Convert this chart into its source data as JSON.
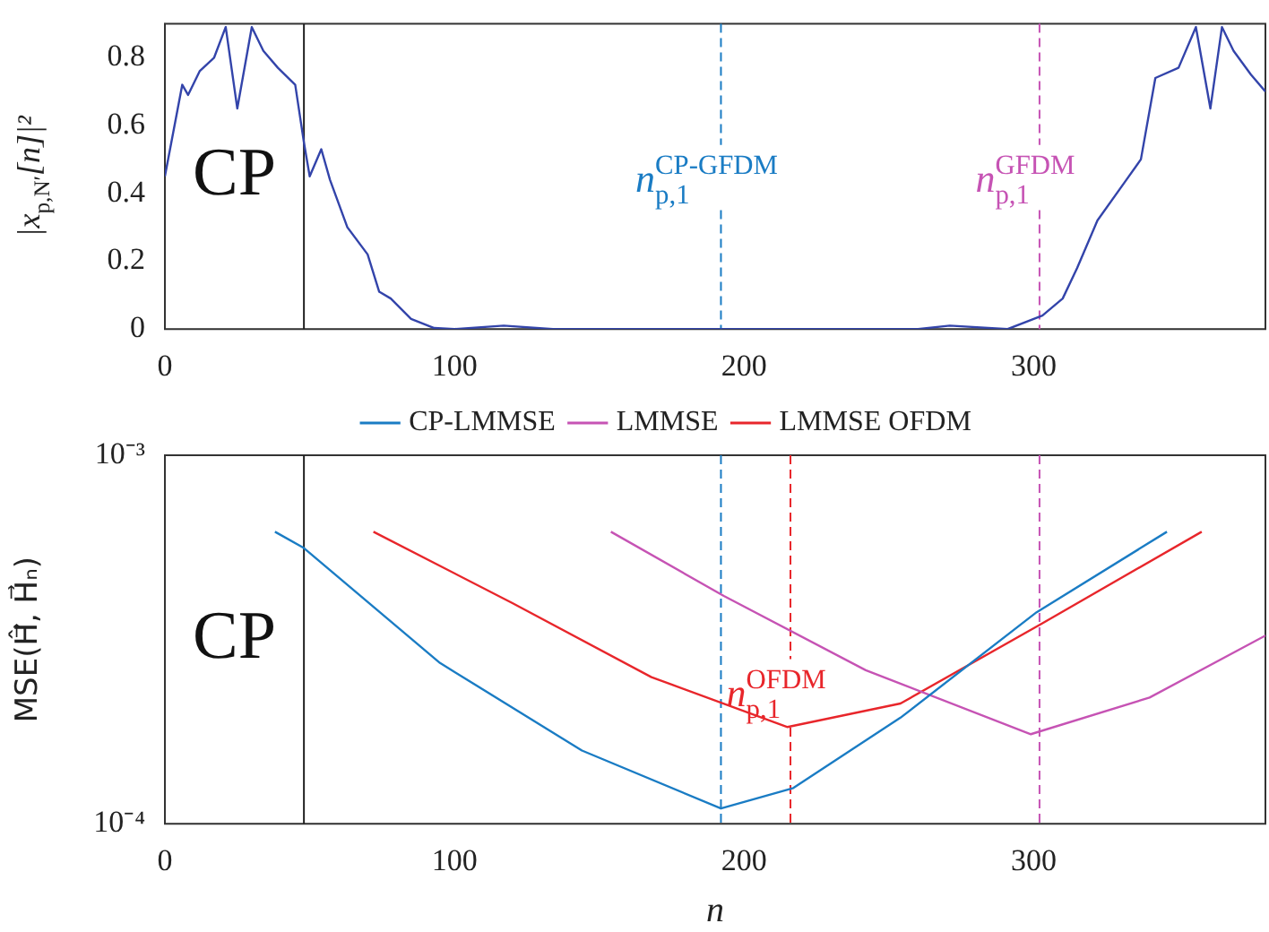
{
  "chart_data": [
    {
      "type": "line",
      "ylabel": "|x$_{p,N′}$[n]|²",
      "xlim": [
        0,
        380
      ],
      "xticks": [
        0,
        100,
        200,
        300
      ],
      "ylim": [
        0,
        0.9
      ],
      "yticks": [
        0,
        0.2,
        0.4,
        0.6,
        0.8
      ],
      "grid": false,
      "legend": false,
      "marker": "none",
      "line_style": "solid",
      "series": [
        {
          "color": "#3344aa",
          "x": [
            0,
            6,
            8,
            12,
            17,
            21,
            25,
            30,
            34,
            39,
            45,
            48,
            50,
            54,
            57,
            63,
            70,
            74,
            78,
            85,
            93,
            100,
            117,
            134,
            160,
            200,
            240,
            260,
            271,
            291,
            303,
            310,
            315,
            322,
            332,
            337,
            342,
            350,
            356,
            361,
            365,
            369,
            375,
            380
          ],
          "values": [
            0.45,
            0.72,
            0.69,
            0.76,
            0.8,
            0.89,
            0.65,
            0.89,
            0.82,
            0.77,
            0.72,
            0.55,
            0.45,
            0.53,
            0.44,
            0.3,
            0.22,
            0.11,
            0.09,
            0.03,
            0.003,
            0,
            0.01,
            0,
            0,
            0,
            0,
            0,
            0.01,
            0,
            0.04,
            0.09,
            0.18,
            0.32,
            0.44,
            0.5,
            0.74,
            0.77,
            0.89,
            0.65,
            0.89,
            0.82,
            0.75,
            0.7
          ]
        }
      ],
      "ref_lines": [
        {
          "axis": "x",
          "value": 48,
          "color": "#222222",
          "line_style": "solid"
        },
        {
          "axis": "x",
          "value": 192,
          "color": "#1a7cc4",
          "line_style": "dashed",
          "label": "n$_{p,1}$$^{CP-GFDM}$"
        },
        {
          "axis": "x",
          "value": 302,
          "color": "#c653b4",
          "line_style": "dashed",
          "label": "n$_{p,1}$$^{GFDM}$"
        }
      ],
      "annotations": [
        "CP"
      ]
    },
    {
      "type": "line",
      "xlabel": "n",
      "ylabel": "MSE(Ĥ⃗, H⃗ₙ)",
      "xlim": [
        0,
        380
      ],
      "xticks": [
        0,
        100,
        200,
        300
      ],
      "ylim": [
        0.0001,
        0.001
      ],
      "yticks": [
        {
          "value": 0.0001,
          "label": "10⁻⁴"
        },
        {
          "value": 0.001,
          "label": "10⁻³"
        }
      ],
      "log": true,
      "grid": false,
      "legend": "top",
      "marker": "none",
      "line_style": "solid",
      "series": [
        {
          "name": "CP-LMMSE",
          "color": "#1a7cc4",
          "x": [
            38,
            48,
            95,
            144,
            192,
            217,
            254,
            301,
            346
          ],
          "values": [
            0.00062,
            0.00056,
            0.000273,
            0.000158,
            0.00011,
            0.000125,
            0.000194,
            0.000375,
            0.00062
          ]
        },
        {
          "name": "LMMSE",
          "color": "#c653b4",
          "x": [
            154,
            193,
            242,
            299,
            340,
            380
          ],
          "values": [
            0.00062,
            0.000415,
            0.000261,
            0.000175,
            0.00022,
            0.000324
          ]
        },
        {
          "name": "LMMSE OFDM",
          "color": "#e8262b",
          "x": [
            72,
            120,
            168,
            215,
            254,
            303,
            358
          ],
          "values": [
            0.00062,
            0.000397,
            0.00025,
            0.000183,
            0.000212,
            0.00035,
            0.00062
          ]
        }
      ],
      "ref_lines": [
        {
          "axis": "x",
          "value": 48,
          "color": "#222222",
          "line_style": "solid"
        },
        {
          "axis": "x",
          "value": 192,
          "color": "#1a7cc4",
          "line_style": "dashed"
        },
        {
          "axis": "x",
          "value": 216,
          "color": "#e8262b",
          "line_style": "dashed",
          "label": "n$_{p,1}$$^{OFDM}$"
        },
        {
          "axis": "x",
          "value": 302,
          "color": "#c653b4",
          "line_style": "dashed"
        }
      ],
      "annotations": [
        "CP"
      ]
    }
  ]
}
